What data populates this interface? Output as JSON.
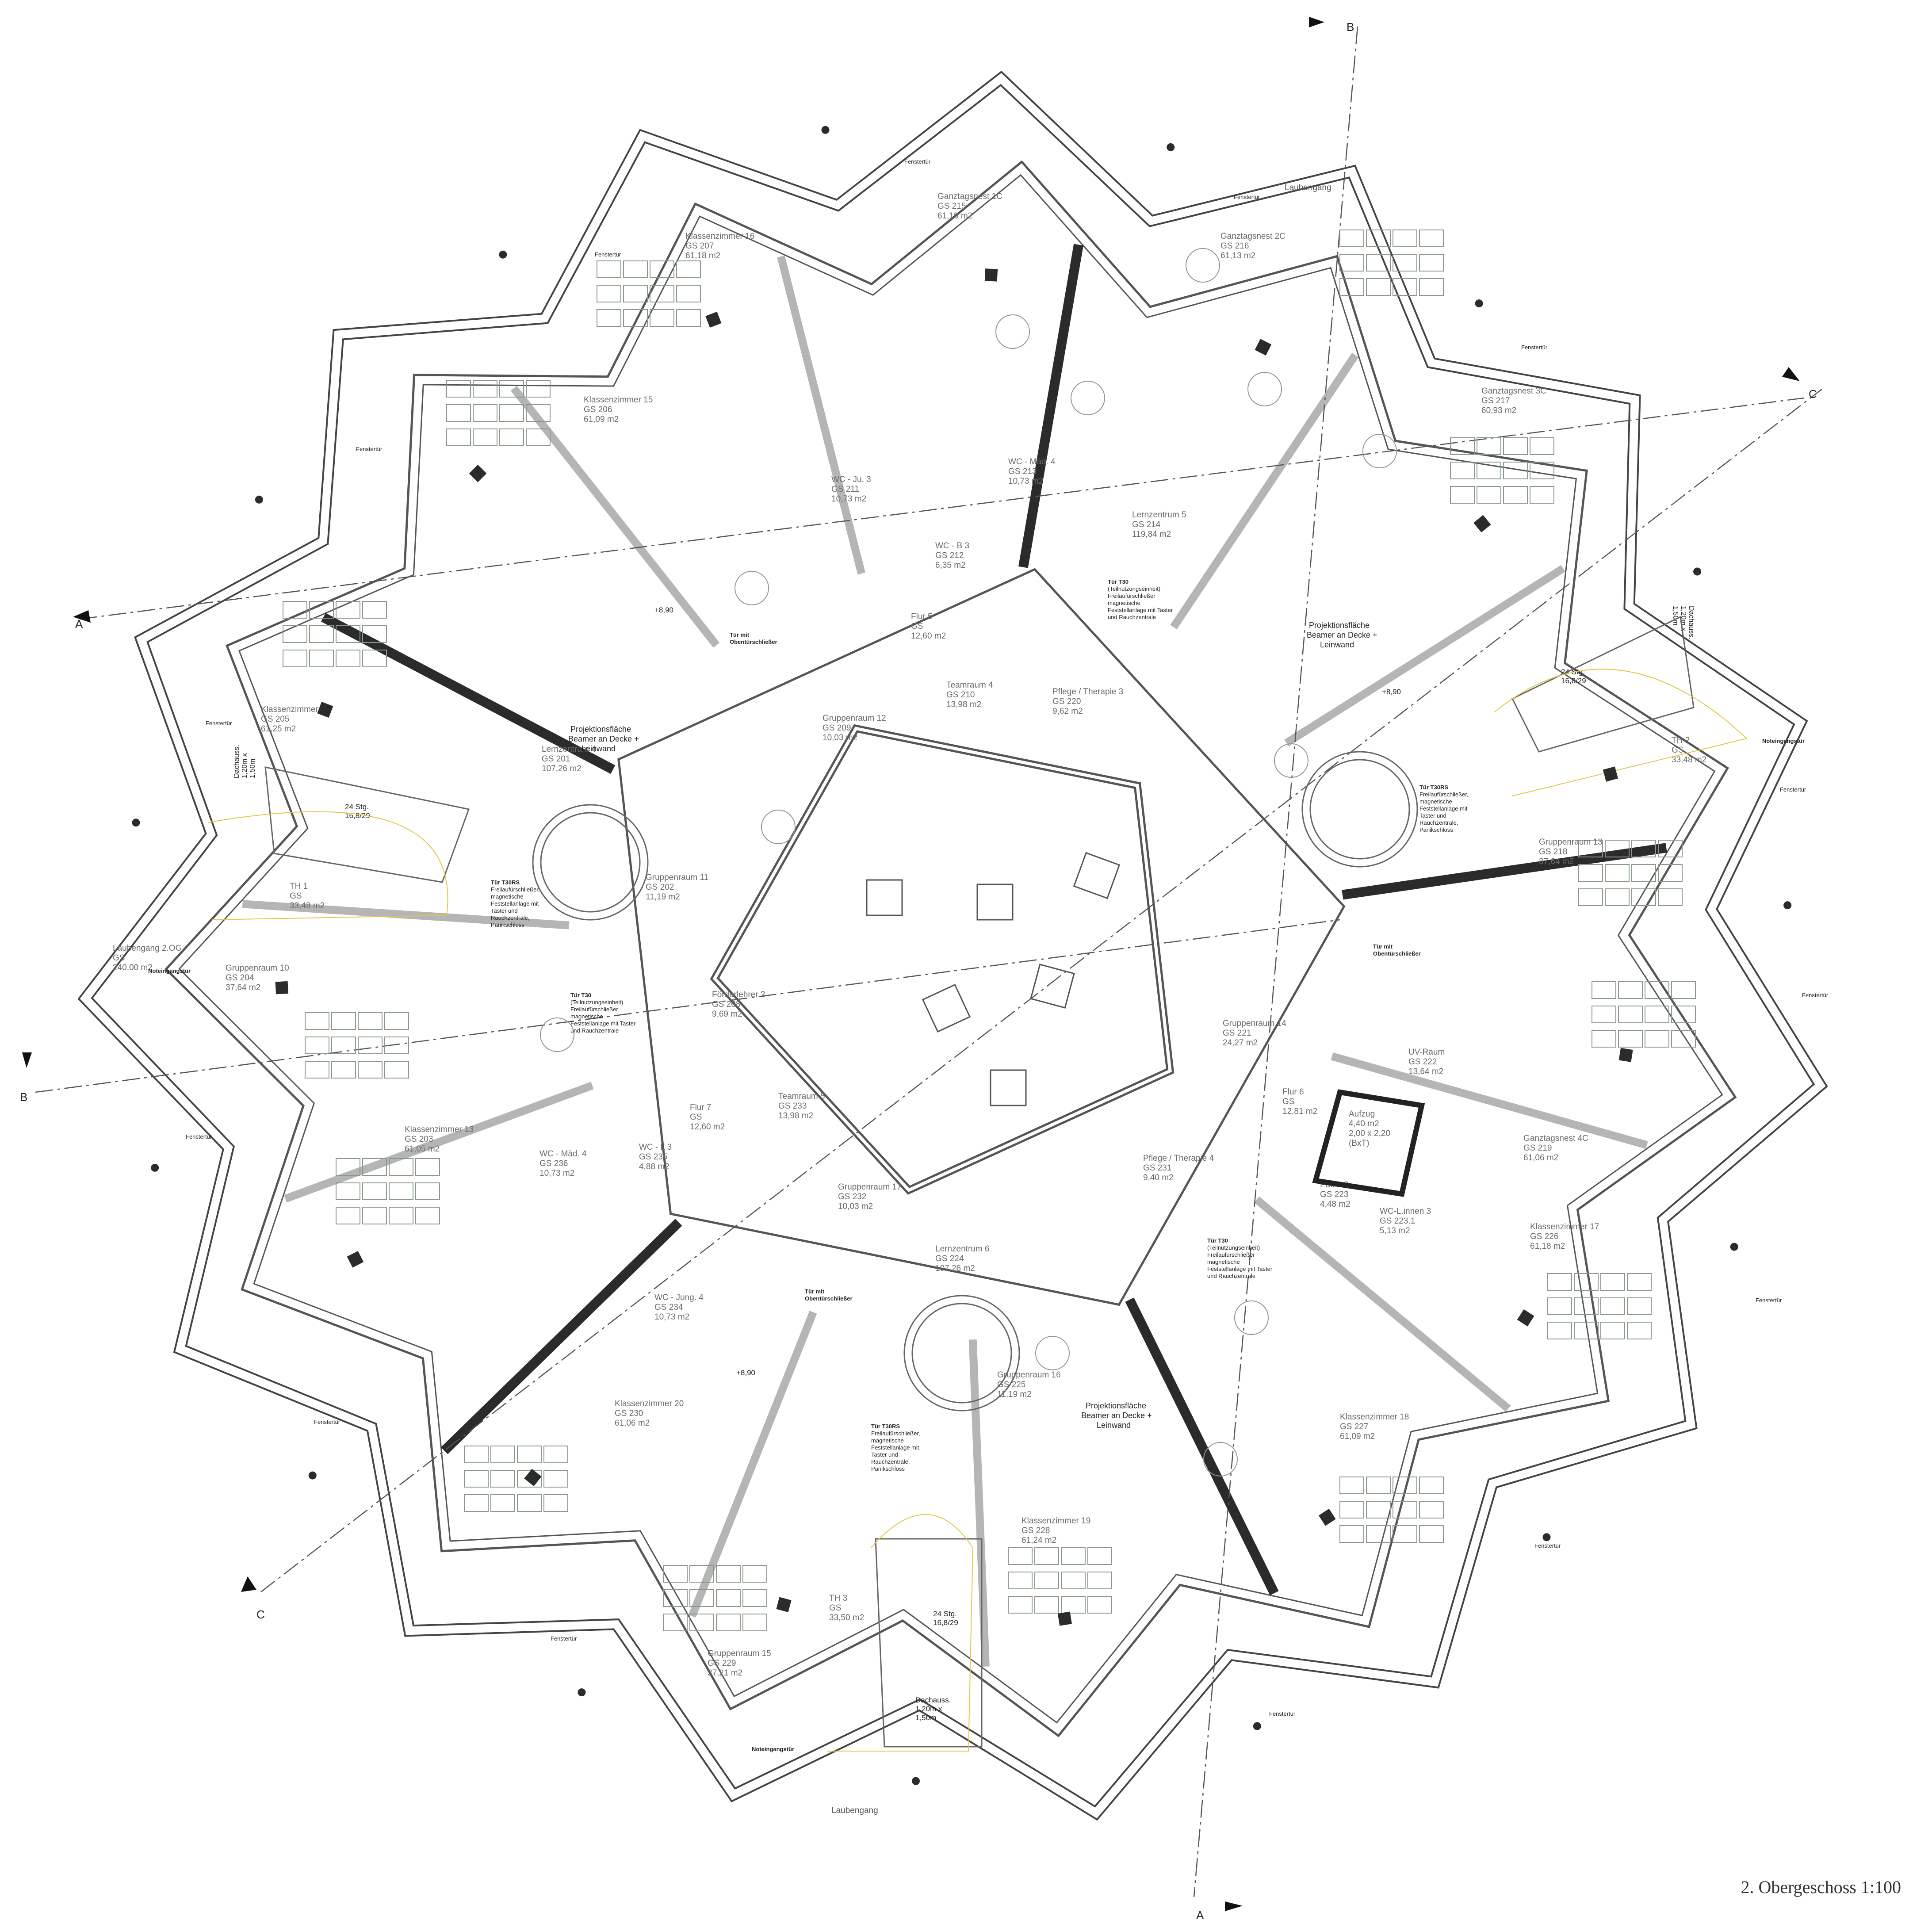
{
  "title": "2. Obergeschoss 1:100",
  "rooms": [
    {
      "id": "r215",
      "lines": [
        "Ganztagsnest 1C",
        "GS 215",
        "61,19 m2"
      ]
    },
    {
      "id": "r216",
      "lines": [
        "Ganztagsnest 2C",
        "GS 216",
        "61,13 m2"
      ]
    },
    {
      "id": "r217",
      "lines": [
        "Ganztagsnest 3C",
        "GS 217",
        "60,93 m2"
      ]
    },
    {
      "id": "r207",
      "lines": [
        "Klassenzimmer 16",
        "GS 207",
        "61,18 m2"
      ]
    },
    {
      "id": "r206",
      "lines": [
        "Klassenzimmer 15",
        "GS 206",
        "61,09 m2"
      ]
    },
    {
      "id": "r205",
      "lines": [
        "Klassenzimmer 14",
        "GS 205",
        "61,25 m2"
      ]
    },
    {
      "id": "r211",
      "lines": [
        "WC - Ju. 3",
        "GS 211",
        "10,73 m2"
      ]
    },
    {
      "id": "r213",
      "lines": [
        "WC - Mäd. 4",
        "GS 213",
        "10,73 m2"
      ]
    },
    {
      "id": "r212",
      "lines": [
        "WC - B 3",
        "GS 212",
        "6,35 m2"
      ]
    },
    {
      "id": "r214",
      "lines": [
        "Lernzentrum 5",
        "GS 214",
        "119,84 m2"
      ]
    },
    {
      "id": "flur5",
      "lines": [
        "Flur 5",
        "GS",
        "12,60 m2"
      ]
    },
    {
      "id": "r209",
      "lines": [
        "Gruppenraum 12",
        "GS 209",
        "10,03 m2"
      ]
    },
    {
      "id": "r210",
      "lines": [
        "Teamraum 4",
        "GS 210",
        "13,98 m2"
      ]
    },
    {
      "id": "r220",
      "lines": [
        "Pflege / Therapie 3",
        "GS 220",
        "9,62 m2"
      ]
    },
    {
      "id": "r201",
      "lines": [
        "Lernzentrum 4",
        "GS 201",
        "107,26 m2"
      ]
    },
    {
      "id": "r202",
      "lines": [
        "Gruppenraum 11",
        "GS 202",
        "11,19 m2"
      ]
    },
    {
      "id": "th1",
      "lines": [
        "TH 1",
        "GS",
        "33,48 m2"
      ]
    },
    {
      "id": "th2",
      "lines": [
        "TH 2",
        "GS",
        "33,48 m2"
      ]
    },
    {
      "id": "r218",
      "lines": [
        "Gruppenraum 13",
        "GS 218",
        "37,64 m2"
      ]
    },
    {
      "id": "r204",
      "lines": [
        "Gruppenraum 10",
        "GS 204",
        "37,64 m2"
      ]
    },
    {
      "id": "lg2og",
      "lines": [
        "Laubengang 2.OG",
        "GS",
        "240,00 m2"
      ]
    },
    {
      "id": "r208",
      "lines": [
        "Förderlehrer 2",
        "GS 208",
        "9,69 m2"
      ]
    },
    {
      "id": "r221",
      "lines": [
        "Gruppenraum 14",
        "GS 221",
        "24,27 m2"
      ]
    },
    {
      "id": "r222",
      "lines": [
        "UV-Raum",
        "GS 222",
        "13,64 m2"
      ]
    },
    {
      "id": "flur6",
      "lines": [
        "Flur 6",
        "GS",
        "12,81 m2"
      ]
    },
    {
      "id": "aufzug",
      "lines": [
        "Aufzug",
        "4,40 m2",
        "2,00 x 2,20",
        "(BxT)"
      ]
    },
    {
      "id": "r223",
      "lines": [
        "Putzr. 2",
        "GS 223",
        "4,48 m2"
      ]
    },
    {
      "id": "r2231",
      "lines": [
        "WC-L.innen 3",
        "GS 223.1",
        "5,13 m2"
      ]
    },
    {
      "id": "r231",
      "lines": [
        "Pflege / Therapie 4",
        "GS 231",
        "9,40 m2"
      ]
    },
    {
      "id": "r219",
      "lines": [
        "Ganztagsnest 4C",
        "GS 219",
        "61,06 m2"
      ]
    },
    {
      "id": "r203",
      "lines": [
        "Klassenzimmer 13",
        "GS 203",
        "61,05 m2"
      ]
    },
    {
      "id": "flur7",
      "lines": [
        "Flur 7",
        "GS",
        "12,60 m2"
      ]
    },
    {
      "id": "r233",
      "lines": [
        "Teamraum 5",
        "GS 233",
        "13,98 m2"
      ]
    },
    {
      "id": "r236",
      "lines": [
        "WC - Mäd. 4",
        "GS 236",
        "10,73 m2"
      ]
    },
    {
      "id": "r235",
      "lines": [
        "WC - L 3",
        "GS 235",
        "4,88 m2"
      ]
    },
    {
      "id": "r234",
      "lines": [
        "WC - Jung. 4",
        "GS 234",
        "10,73 m2"
      ]
    },
    {
      "id": "r232",
      "lines": [
        "Gruppenraum 17",
        "GS 232",
        "10,03 m2"
      ]
    },
    {
      "id": "r224",
      "lines": [
        "Lernzentrum 6",
        "GS 224",
        "107,26 m2"
      ]
    },
    {
      "id": "r225",
      "lines": [
        "Gruppenraum 16",
        "GS 225",
        "11,19 m2"
      ]
    },
    {
      "id": "r226",
      "lines": [
        "Klassenzimmer 17",
        "GS 226",
        "61,18 m2"
      ]
    },
    {
      "id": "r227",
      "lines": [
        "Klassenzimmer 18",
        "GS 227",
        "61,09 m2"
      ]
    },
    {
      "id": "r230",
      "lines": [
        "Klassenzimmer 20",
        "GS 230",
        "61,06 m2"
      ]
    },
    {
      "id": "r228",
      "lines": [
        "Klassenzimmer 19",
        "GS 228",
        "61,24 m2"
      ]
    },
    {
      "id": "r229",
      "lines": [
        "Gruppenraum 15",
        "GS 229",
        "37,21 m2"
      ]
    },
    {
      "id": "th3",
      "lines": [
        "TH 3",
        "GS",
        "33,50 m2"
      ]
    }
  ],
  "notes": [
    {
      "id": "n1",
      "bold": "Tür T30",
      "lines": [
        "(Teilnutzungseinheit)",
        "Freilaufürschließer",
        "magnetische",
        "Feststellanlage mit Taster",
        "und Rauchzentrale"
      ]
    },
    {
      "id": "n2",
      "bold": "Tür T30RS",
      "lines": [
        "Freilaufürschließer,",
        "magnetische",
        "Feststellanlage mit",
        "Taster und",
        "Rauchzentrale,",
        "Panikschloss"
      ]
    },
    {
      "id": "n3",
      "bold": "Tür T30",
      "lines": [
        "(Teilnutzungseinheit)",
        "Freilaufürschließer",
        "magnetische",
        "Feststellanlage mit Taster",
        "und Rauchzentrale"
      ]
    },
    {
      "id": "n4",
      "bold": "Tür T30RS",
      "lines": [
        "Freilaufürschließer,",
        "magnetische",
        "Feststellanlage mit",
        "Taster und",
        "Rauchzentrale,",
        "Panikschloss"
      ]
    },
    {
      "id": "n5",
      "bold": "Tür T30",
      "lines": [
        "(Teilnutzungseinheit)",
        "Freilaufürschließer",
        "magnetische",
        "Feststellanlage mit Taster",
        "und Rauchzentrale"
      ]
    },
    {
      "id": "n6",
      "bold": "Tür T30RS",
      "lines": [
        "Freilaufürschließer,",
        "magnetische",
        "Feststellanlage mit",
        "Taster und",
        "Rauchzentrale,",
        "Panikschloss"
      ]
    }
  ],
  "labels": {
    "fenstertuer": "Fenstertür",
    "laubengang": "Laubengang",
    "noteingangstuer": "Noteingangstür",
    "tuer_obentuer": [
      "Tür mit",
      "Obentürschließer"
    ],
    "projektion": [
      "Projektionsfläche",
      "Beamer an Decke +",
      "Leinwand"
    ],
    "level": "+8,90",
    "stair": [
      "24 Stg.",
      "16,8/29"
    ],
    "dachaus": [
      "Dachauss.",
      "1,20m x",
      "1,50m"
    ]
  },
  "sections": [
    "A",
    "A",
    "B",
    "B",
    "C",
    "C"
  ],
  "colors": {
    "wall_dark": "#2b2b2b",
    "wall_grey": "#bdbdbd",
    "line": "#444444",
    "furniture": "#7f8f7f",
    "yellow": "#e6c64a"
  }
}
